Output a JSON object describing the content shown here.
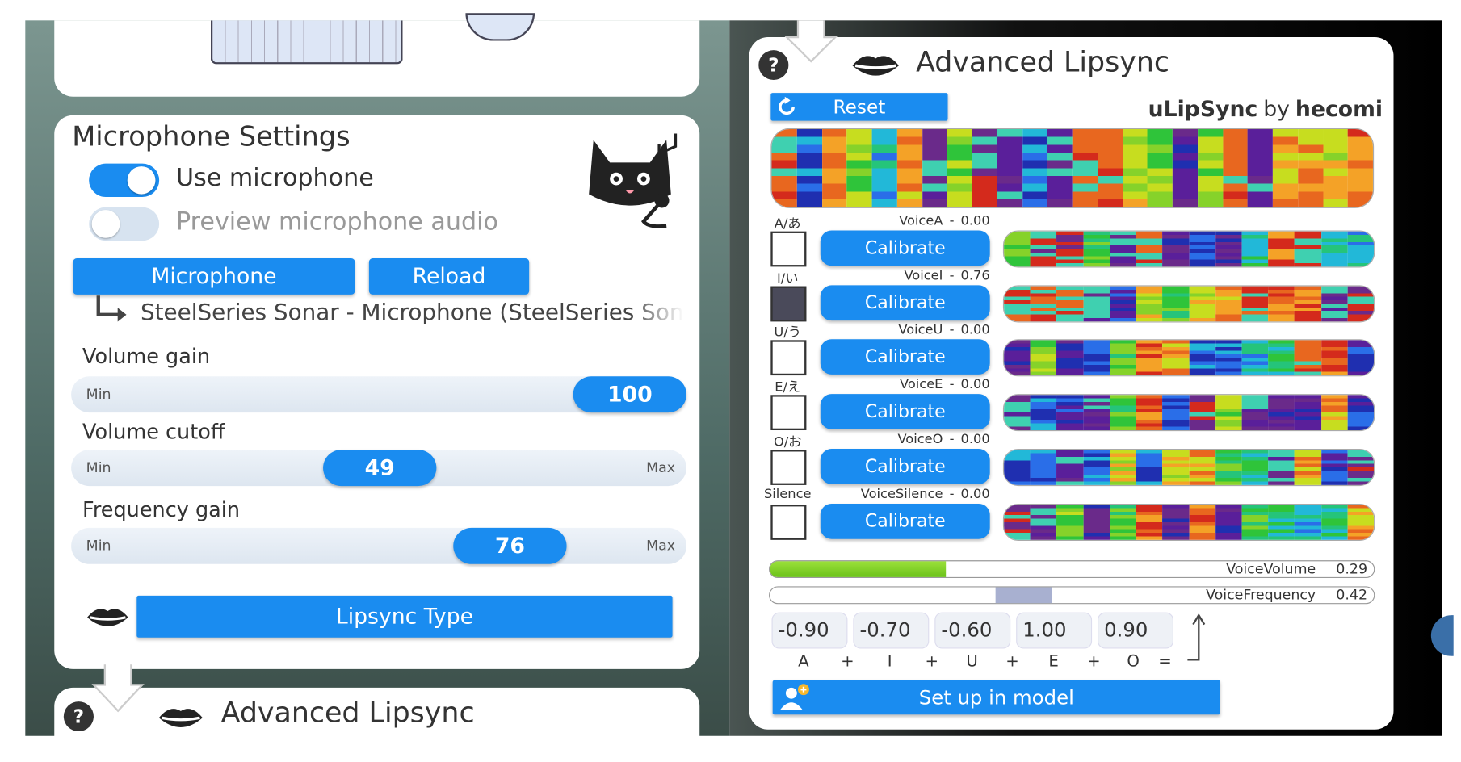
{
  "microphone_panel": {
    "title": "Microphone Settings",
    "toggles": [
      {
        "label": "Use microphone",
        "on": true
      },
      {
        "label": "Preview microphone audio",
        "on": false
      }
    ],
    "buttons": [
      "Microphone",
      "Reload"
    ],
    "device": "SteelSeries Sonar - Microphone (SteelSeries Sonar V",
    "sliders": [
      {
        "label": "Volume gain",
        "min_label": "Min",
        "value": 100
      },
      {
        "label": "Volume cutoff",
        "min_label": "Min",
        "max_label": "Max",
        "value": 49
      },
      {
        "label": "Frequency gain",
        "min_label": "Min",
        "max_label": "Max",
        "value": 76
      }
    ],
    "lipsync_type": "Lipsync Type"
  },
  "bottom_card": {
    "help": "?",
    "title": "Advanced Lipsync"
  },
  "lipsync_panel": {
    "help": "?",
    "title": "Advanced Lipsync",
    "reset": "Reset",
    "brand": "uLipSync",
    "by": "by",
    "author": "hecomi",
    "separator": "-",
    "phonemes": [
      {
        "label": "A/あ",
        "name": "VoiceA",
        "value": "0.00",
        "button": "Calibrate",
        "active": false
      },
      {
        "label": "I/い",
        "name": "VoiceI",
        "value": "0.76",
        "button": "Calibrate",
        "active": true
      },
      {
        "label": "U/う",
        "name": "VoiceU",
        "value": "0.00",
        "button": "Calibrate",
        "active": false
      },
      {
        "label": "E/え",
        "name": "VoiceE",
        "value": "0.00",
        "button": "Calibrate",
        "active": false
      },
      {
        "label": "O/お",
        "name": "VoiceO",
        "value": "0.00",
        "button": "Calibrate",
        "active": false
      },
      {
        "label": "Silence",
        "name": "VoiceSilence",
        "value": "0.00",
        "button": "Calibrate",
        "active": false
      }
    ],
    "meters": [
      {
        "label": "VoiceVolume",
        "value": 0.29
      },
      {
        "label": "VoiceFrequency",
        "value": 0.42
      }
    ],
    "weights": [
      "-0.90",
      "-0.70",
      "-0.60",
      "1.00",
      "0.90"
    ],
    "formula": [
      "A",
      "+",
      "I",
      "+",
      "U",
      "+",
      "E",
      "+",
      "O",
      "="
    ],
    "setup": "Set up in model"
  }
}
